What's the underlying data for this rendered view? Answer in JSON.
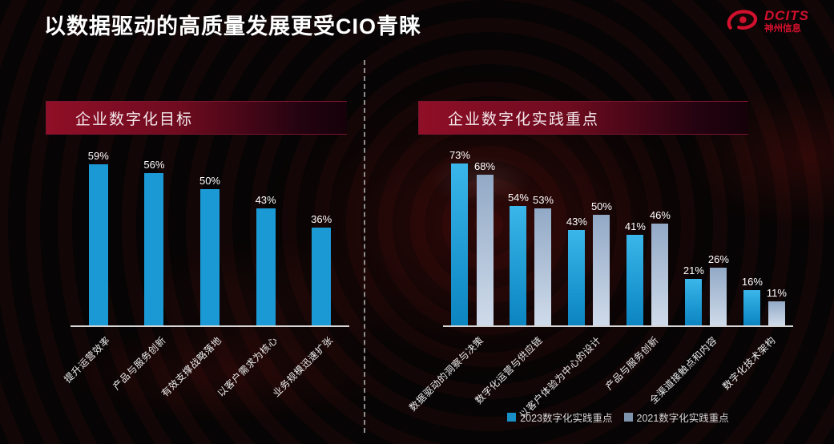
{
  "title": "以数据驱动的高质量发展更受CIO青睐",
  "logo": {
    "brand": "DCITS",
    "subtitle": "神州信息",
    "color": "#D1102D"
  },
  "accent_color": "#8F0F27",
  "chart_data": [
    {
      "type": "bar",
      "title": "企业数字化目标",
      "categories": [
        "提升运营效率",
        "产品与服务创新",
        "有效支撑战略落地",
        "以客户需求为核心",
        "业务规模迅速扩张"
      ],
      "values": [
        59,
        56,
        50,
        43,
        36
      ],
      "unit": "%",
      "bar_color": "#1B99D5",
      "ylim": [
        0,
        65
      ],
      "grid": false,
      "data_labels": true,
      "xlabel": "",
      "ylabel": ""
    },
    {
      "type": "bar",
      "title": "企业数字化实践重点",
      "categories": [
        "数据驱动的洞察与决策",
        "数字化运营与供应链",
        "以客户体验为中心的设计",
        "产品与服务创新",
        "全渠道接触点和内容",
        "数字化技术架构"
      ],
      "series": [
        {
          "name": "2023数字化实践重点",
          "values": [
            73,
            54,
            43,
            41,
            21,
            16
          ],
          "color": "#1890C6",
          "gradient": [
            "#3AB6EA",
            "#0B84C0"
          ]
        },
        {
          "name": "2021数字化实践重点",
          "values": [
            68,
            53,
            50,
            46,
            26,
            11
          ],
          "color": "#7E93AC",
          "gradient": [
            "#92A9C6",
            "#CFDBEA"
          ]
        }
      ],
      "unit": "%",
      "ylim": [
        0,
        80
      ],
      "grid": false,
      "legend_position": "bottom",
      "data_labels": true,
      "xlabel": "",
      "ylabel": ""
    }
  ]
}
